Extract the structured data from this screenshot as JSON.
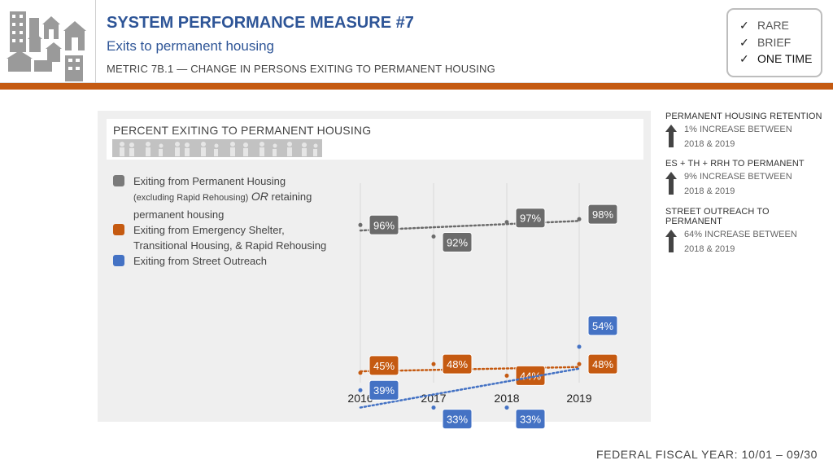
{
  "header": {
    "title": "SYSTEM PERFORMANCE MEASURE #7",
    "subtitle": "Exits to permanent housing",
    "metric": "METRIC 7B.1 — CHANGE IN PERSONS EXITING TO PERMANENT HOUSING"
  },
  "checklist": [
    {
      "label": "RARE",
      "icon": "check-icon"
    },
    {
      "label": "BRIEF",
      "icon": "check-icon"
    },
    {
      "label": "ONE TIME",
      "icon": "check-icon"
    }
  ],
  "colors": {
    "accent": "#c45a11",
    "title_blue": "#2e5597",
    "gray_series": "#6b6b6b",
    "orange_series": "#c55a11",
    "blue_series": "#4472c4"
  },
  "panel": {
    "title": "PERCENT EXITING TO PERMANENT HOUSING"
  },
  "legend": {
    "gray_main": "Exiting from Permanent Housing",
    "gray_note": "(excluding Rapid Rehousing)",
    "gray_or": "OR",
    "gray_retaining": "retaining",
    "gray_line2": "permanent housing",
    "orange_line1": "Exiting from Emergency Shelter,",
    "orange_line2": "Transitional Housing, & Rapid Rehousing",
    "blue_line1": "Exiting from Street Outreach"
  },
  "chart_data": {
    "type": "line",
    "title": "PERCENT EXITING TO PERMANENT HOUSING",
    "categories": [
      "2016",
      "2017",
      "2018",
      "2019"
    ],
    "ylim": [
      25,
      105
    ],
    "series": [
      {
        "name": "Exiting from Permanent Housing (excluding Rapid Rehousing) OR retaining permanent housing",
        "color": "#6b6b6b",
        "values": [
          96,
          92,
          97,
          98
        ],
        "labels": [
          "96%",
          "92%",
          "97%",
          "98%"
        ]
      },
      {
        "name": "Exiting from Emergency Shelter, Transitional Housing, & Rapid Rehousing",
        "color": "#c55a11",
        "values": [
          45,
          48,
          44,
          48
        ],
        "labels": [
          "45%",
          "48%",
          "44%",
          "48%"
        ]
      },
      {
        "name": "Exiting from Street Outreach",
        "color": "#4472c4",
        "values": [
          39,
          33,
          33,
          54
        ],
        "labels": [
          "39%",
          "33%",
          "33%",
          "54%"
        ]
      }
    ]
  },
  "stats": [
    {
      "title": "PERMANENT HOUSING RETENTION",
      "line1": "1% INCREASE BETWEEN",
      "line2": "2018 & 2019",
      "icon": "up-arrow-icon"
    },
    {
      "title": "ES + TH + RRH TO PERMANENT",
      "line1": "9% INCREASE BETWEEN",
      "line2": "2018 & 2019",
      "icon": "up-arrow-icon"
    },
    {
      "title": "STREET OUTREACH TO PERMANENT",
      "line1": "64% INCREASE BETWEEN",
      "line2": "2018 & 2019",
      "icon": "up-arrow-icon"
    }
  ],
  "footer": "FEDERAL FISCAL YEAR:  10/01 – 09/30"
}
